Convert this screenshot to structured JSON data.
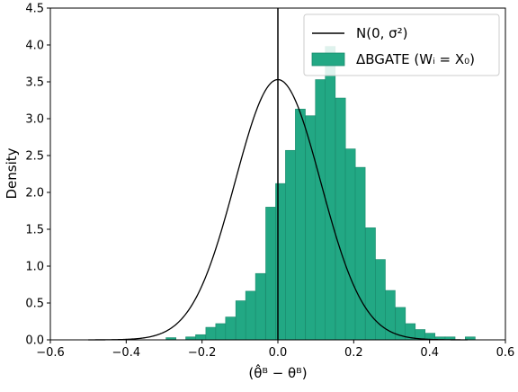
{
  "chart_data": {
    "type": "bar",
    "xlabel": "(θ̂ᴮ − θᴮ)",
    "ylabel": "Density",
    "xlim": [
      -0.6,
      0.6
    ],
    "ylim": [
      0,
      4.5
    ],
    "xticks": [
      "−0.6",
      "−0.4",
      "−0.2",
      "0.0",
      "0.2",
      "0.4",
      "0.6"
    ],
    "yticks": [
      "0.0",
      "0.5",
      "1.0",
      "1.5",
      "2.0",
      "2.5",
      "3.0",
      "3.5",
      "4.0",
      "4.5"
    ],
    "vline_x": 0.0,
    "legend_position": "top-right",
    "colors": {
      "histogram": "#22a884",
      "histogram_edge": "#1a8a6c",
      "normal": "#000000"
    },
    "series": [
      {
        "name": "N(0, σ²)",
        "kind": "normal-curve",
        "mean": 0.0,
        "peak_density": 3.53,
        "x_range": [
          -0.5,
          0.5
        ]
      },
      {
        "name": "ΔBGATE (Wᵢ = X₀)",
        "kind": "histogram",
        "bin_width": 0.0263,
        "bins_left_edge": [
          -0.295,
          -0.243,
          -0.217,
          -0.19,
          -0.164,
          -0.138,
          -0.111,
          -0.085,
          -0.059,
          -0.032,
          -0.006,
          0.02,
          0.046,
          0.073,
          0.099,
          0.125,
          0.152,
          0.178,
          0.204,
          0.231,
          0.257,
          0.283,
          0.31,
          0.336,
          0.362,
          0.388,
          0.415,
          0.441,
          0.494
        ],
        "density": [
          0.03,
          0.04,
          0.07,
          0.17,
          0.22,
          0.31,
          0.53,
          0.66,
          0.9,
          1.8,
          2.12,
          2.57,
          3.13,
          3.04,
          3.53,
          3.98,
          3.28,
          2.59,
          2.34,
          1.52,
          1.09,
          0.67,
          0.44,
          0.22,
          0.14,
          0.09,
          0.04,
          0.04,
          0.04
        ]
      }
    ]
  }
}
